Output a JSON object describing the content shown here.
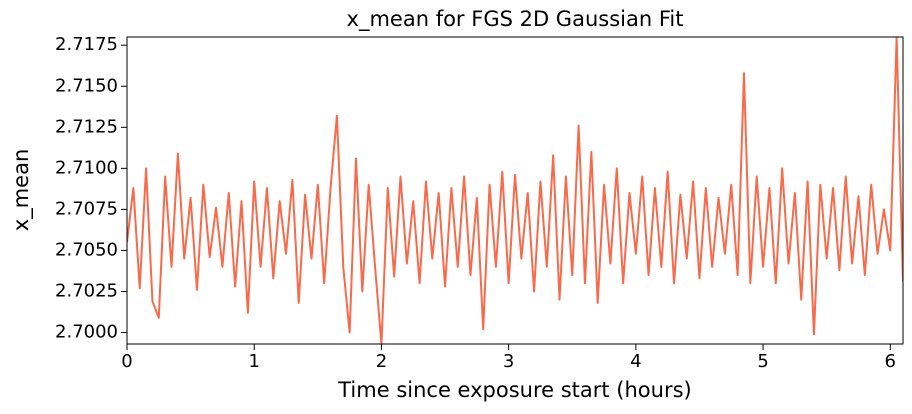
{
  "chart_data": {
    "type": "line",
    "title": "x_mean for FGS 2D Gaussian Fit",
    "x_label": "Time since exposure start (hours)",
    "y_label": "x_mean",
    "color": "#f96a4b",
    "xlim": [
      0,
      6.1
    ],
    "xticks": [
      0,
      1,
      2,
      3,
      4,
      5,
      6
    ],
    "ylim": [
      2.6993,
      2.718
    ],
    "yticks": [
      {
        "value": 2.7,
        "label": "2.7000"
      },
      2.7025,
      {
        "value": 2.705,
        "label": "2.7050"
      },
      2.7075,
      {
        "value": 2.71,
        "label": "2.7100"
      },
      2.7125,
      {
        "value": 2.715,
        "label": "2.7150"
      },
      2.7175
    ],
    "x": [
      0,
      0.05,
      0.1,
      0.15,
      0.2,
      0.25,
      0.3,
      0.35,
      0.4,
      0.45,
      0.5,
      0.55,
      0.6,
      0.65,
      0.7,
      0.75,
      0.8,
      0.85,
      0.9,
      0.95,
      1,
      1.05,
      1.1,
      1.15,
      1.2,
      1.25,
      1.3,
      1.35,
      1.4,
      1.45,
      1.5,
      1.55,
      1.6,
      1.65,
      1.7,
      1.75,
      1.8,
      1.85,
      1.9,
      1.95,
      2,
      2.05,
      2.1,
      2.15,
      2.2,
      2.25,
      2.3,
      2.35,
      2.4,
      2.45,
      2.5,
      2.55,
      2.6,
      2.65,
      2.7,
      2.75,
      2.8,
      2.85,
      2.9,
      2.95,
      3,
      3.05,
      3.1,
      3.15,
      3.2,
      3.25,
      3.3,
      3.35,
      3.4,
      3.45,
      3.5,
      3.55,
      3.6,
      3.65,
      3.7,
      3.75,
      3.8,
      3.85,
      3.9,
      3.95,
      4,
      4.05,
      4.1,
      4.15,
      4.2,
      4.25,
      4.3,
      4.35,
      4.4,
      4.45,
      4.5,
      4.55,
      4.6,
      4.65,
      4.7,
      4.75,
      4.8,
      4.85,
      4.9,
      4.95,
      5,
      5.05,
      5.1,
      5.15,
      5.2,
      5.25,
      5.3,
      5.35,
      5.4,
      5.45,
      5.5,
      5.55,
      5.6,
      5.65,
      5.7,
      5.75,
      5.8,
      5.85,
      5.9,
      5.95,
      6,
      6.05,
      6.1
    ],
    "values": [
      2.7055,
      2.7088,
      2.7027,
      2.71,
      2.7019,
      2.7009,
      2.7095,
      2.704,
      2.7109,
      2.7045,
      2.7082,
      2.7026,
      2.709,
      2.7046,
      2.7076,
      2.704,
      2.7085,
      2.7028,
      2.708,
      2.7012,
      2.7092,
      2.704,
      2.7088,
      2.7033,
      2.708,
      2.7048,
      2.7093,
      2.7018,
      2.7084,
      2.7045,
      2.709,
      2.703,
      2.7088,
      2.7132,
      2.704,
      2.7,
      2.7106,
      2.7025,
      2.709,
      2.704,
      2.6993,
      2.7088,
      2.7034,
      2.7095,
      2.7042,
      2.708,
      2.703,
      2.7092,
      2.7045,
      2.7085,
      2.7028,
      2.7088,
      2.704,
      2.7095,
      2.7035,
      2.7082,
      2.7002,
      2.709,
      2.704,
      2.7098,
      2.703,
      2.7096,
      2.7045,
      2.7085,
      2.7025,
      2.7092,
      2.704,
      2.7108,
      2.702,
      2.7095,
      2.7035,
      2.7126,
      2.703,
      2.711,
      2.7018,
      2.709,
      2.7042,
      2.71,
      2.703,
      2.7085,
      2.7048,
      2.7095,
      2.7035,
      2.7088,
      2.704,
      2.7098,
      2.703,
      2.7084,
      2.7045,
      2.7092,
      2.7033,
      2.7088,
      2.704,
      2.7082,
      2.7048,
      2.709,
      2.7035,
      2.7158,
      2.703,
      2.7095,
      2.704,
      2.7088,
      2.703,
      2.71,
      2.7042,
      2.7085,
      2.702,
      2.7092,
      2.6999,
      2.709,
      2.7045,
      2.7088,
      2.7038,
      2.7095,
      2.7042,
      2.7083,
      2.7035,
      2.709,
      2.7048,
      2.7075,
      2.705,
      2.718,
      2.7031
    ]
  }
}
